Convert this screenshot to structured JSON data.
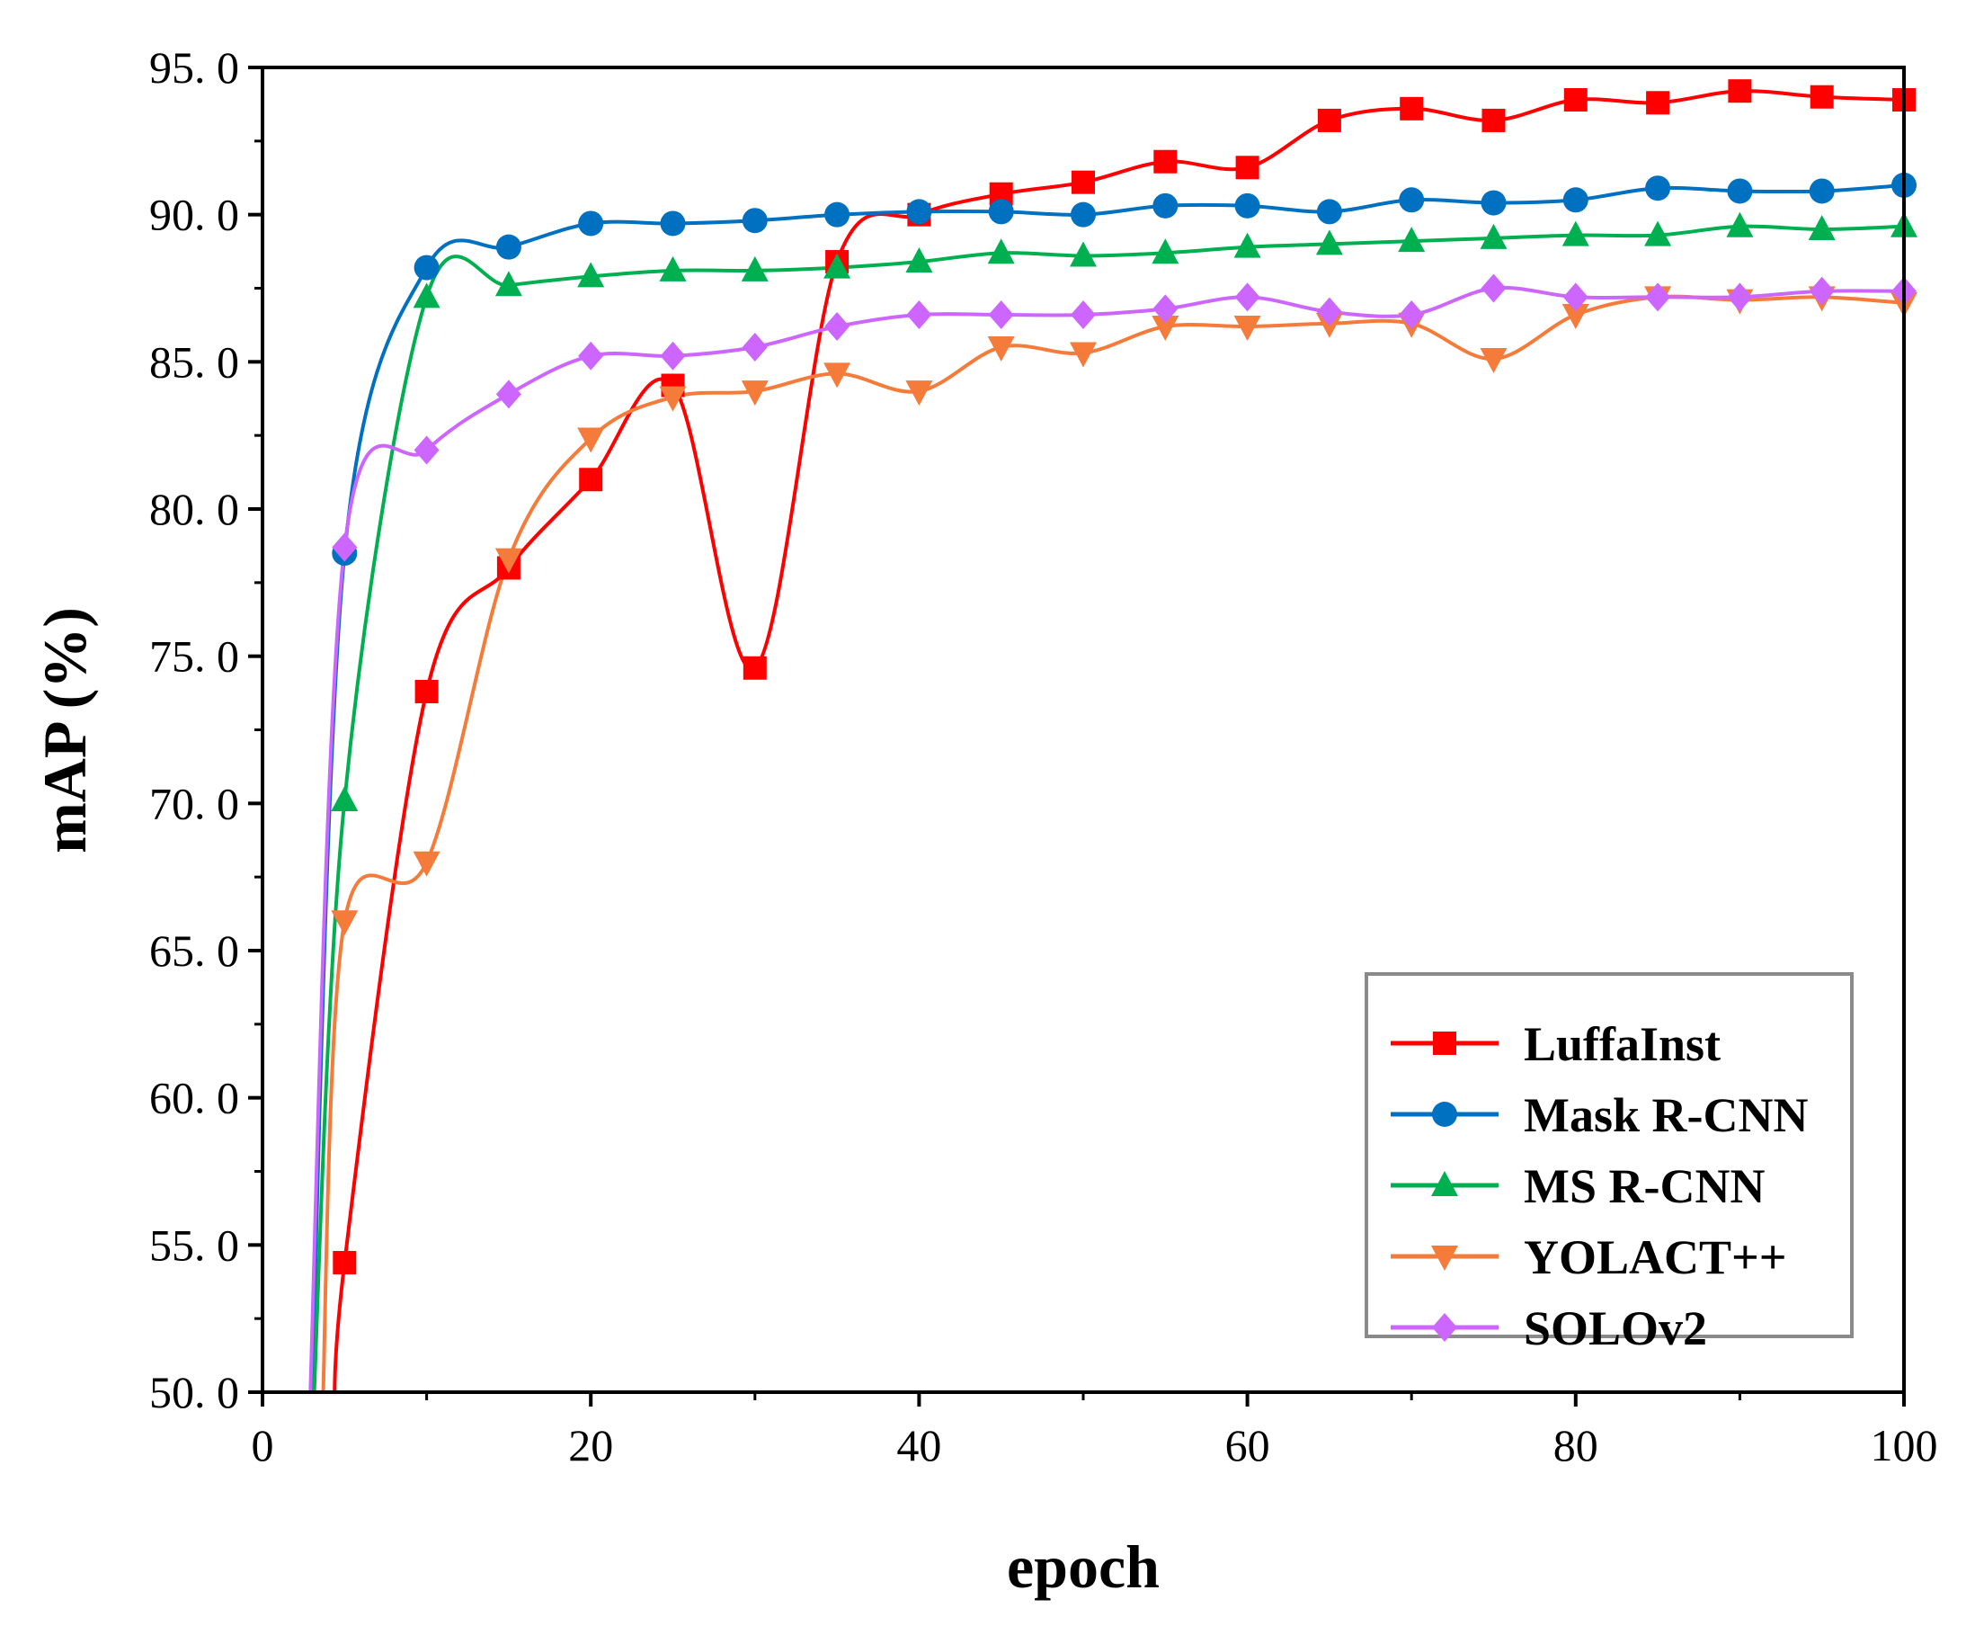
{
  "chart_data": {
    "type": "line",
    "title": "",
    "xlabel": "epoch",
    "ylabel": "mAP (%)",
    "xlim": [
      0,
      100
    ],
    "ylim": [
      50,
      95
    ],
    "xticks": [
      0,
      20,
      40,
      60,
      80,
      100
    ],
    "xtick_labels": [
      "0",
      "20",
      "40",
      "60",
      "80",
      "100"
    ],
    "yticks": [
      50,
      55,
      60,
      65,
      70,
      75,
      80,
      85,
      90,
      95
    ],
    "ytick_labels": [
      "50. 0",
      "55. 0",
      "60. 0",
      "65. 0",
      "70. 0",
      "75. 0",
      "80. 0",
      "85. 0",
      "90. 0",
      "95. 0"
    ],
    "grid": false,
    "legend_position": "bottom-right",
    "series": [
      {
        "name": "LuffaInst",
        "color": "#ff0000",
        "marker": "square",
        "x": [
          5,
          10,
          15,
          20,
          25,
          30,
          35,
          40,
          45,
          50,
          55,
          60,
          65,
          70,
          75,
          80,
          85,
          90,
          95,
          100
        ],
        "values": [
          54.4,
          73.8,
          78.0,
          81.0,
          84.2,
          74.6,
          88.4,
          90.0,
          90.7,
          91.1,
          91.8,
          91.6,
          93.2,
          93.6,
          93.2,
          93.9,
          93.8,
          94.2,
          94.0,
          93.9
        ]
      },
      {
        "name": "Mask R-CNN",
        "color": "#0070c0",
        "marker": "circle",
        "x": [
          5,
          10,
          15,
          20,
          25,
          30,
          35,
          40,
          45,
          50,
          55,
          60,
          65,
          70,
          75,
          80,
          85,
          90,
          95,
          100
        ],
        "values": [
          78.5,
          88.2,
          88.9,
          89.7,
          89.7,
          89.8,
          90.0,
          90.1,
          90.1,
          90.0,
          90.3,
          90.3,
          90.1,
          90.5,
          90.4,
          90.5,
          90.9,
          90.8,
          90.8,
          91.0
        ]
      },
      {
        "name": "MS R-CNN",
        "color": "#00b050",
        "marker": "triangle-up",
        "x": [
          5,
          10,
          15,
          20,
          25,
          30,
          35,
          40,
          45,
          50,
          55,
          60,
          65,
          70,
          75,
          80,
          85,
          90,
          95,
          100
        ],
        "values": [
          70.1,
          87.2,
          87.6,
          87.9,
          88.1,
          88.1,
          88.2,
          88.4,
          88.7,
          88.6,
          88.7,
          88.9,
          89.0,
          89.1,
          89.2,
          89.3,
          89.3,
          89.6,
          89.5,
          89.6
        ]
      },
      {
        "name": "YOLACT++",
        "color": "#f47b3a",
        "marker": "triangle-down",
        "x": [
          5,
          10,
          15,
          20,
          25,
          30,
          35,
          40,
          45,
          50,
          55,
          60,
          65,
          70,
          75,
          80,
          85,
          90,
          95,
          100
        ],
        "values": [
          66.0,
          68.0,
          78.3,
          82.4,
          83.8,
          84.0,
          84.6,
          84.0,
          85.5,
          85.3,
          86.2,
          86.2,
          86.3,
          86.3,
          85.1,
          86.6,
          87.2,
          87.1,
          87.2,
          87.0
        ]
      },
      {
        "name": "SOLOv2",
        "color": "#cc66ff",
        "marker": "diamond",
        "x": [
          5,
          10,
          15,
          20,
          25,
          30,
          35,
          40,
          45,
          50,
          55,
          60,
          65,
          70,
          75,
          80,
          85,
          90,
          95,
          100
        ],
        "values": [
          78.7,
          82.0,
          83.9,
          85.2,
          85.2,
          85.5,
          86.2,
          86.6,
          86.6,
          86.6,
          86.8,
          87.2,
          86.7,
          86.6,
          87.5,
          87.2,
          87.2,
          87.2,
          87.4,
          87.4
        ]
      }
    ]
  }
}
